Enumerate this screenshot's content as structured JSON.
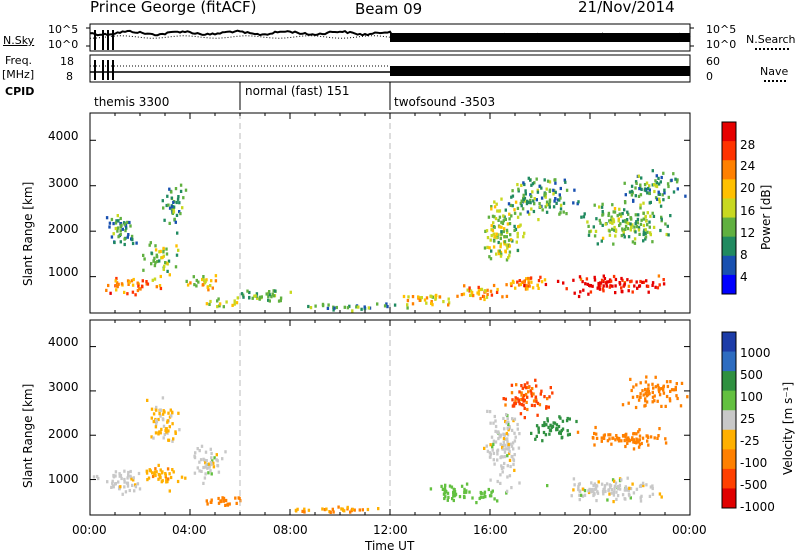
{
  "header": {
    "station": "Prince George (fitACF)",
    "beam": "Beam 09",
    "date": "21/Nov/2014"
  },
  "top_panel": {
    "nsky_label": "N.Sky",
    "nsearch_label": "N.Search",
    "left_ticks": [
      "10^5",
      "10^0"
    ],
    "right_ticks": [
      "10^5",
      "10^0"
    ]
  },
  "freq_panel": {
    "label_line1": "Freq.",
    "label_line2": "[MHz]",
    "left_ticks": [
      "18",
      "8"
    ],
    "right_ticks": [
      "60",
      "0"
    ],
    "nave_label": "Nave",
    "cpid_label": "CPID"
  },
  "cpid_segments": [
    {
      "label": "themis 3300",
      "start_hour": 0,
      "end_hour": 6
    },
    {
      "label": "normal (fast) 151",
      "start_hour": 6,
      "end_hour": 12
    },
    {
      "label": "twofsound -3503",
      "start_hour": 12,
      "end_hour": 24
    }
  ],
  "power_panel": {
    "ylabel": "Slant Range [km]",
    "cbar_label": "Power [dB]",
    "cbar_ticks": [
      "28",
      "24",
      "20",
      "16",
      "12",
      "8",
      "4"
    ],
    "cbar_colors": [
      "#e60000",
      "#ff3300",
      "#ff8000",
      "#ffc000",
      "#c8d820",
      "#60b040",
      "#208a60",
      "#1850b0",
      "#0000ff"
    ]
  },
  "velocity_panel": {
    "ylabel": "Slant Range [km]",
    "cbar_label": "Velocity [m s⁻¹]",
    "cbar_ticks": [
      "1000",
      "500",
      "100",
      "25",
      "-25",
      "-100",
      "-500",
      "-1000"
    ],
    "cbar_colors": [
      "#1c3ca8",
      "#2d6cc0",
      "#2f9040",
      "#63c040",
      "#c8c8c8",
      "#ffb000",
      "#ff8000",
      "#ff4000",
      "#e00000"
    ]
  },
  "y_ticks": [
    "4000",
    "3000",
    "2000",
    "1000"
  ],
  "x_ticks": [
    "00:00",
    "04:00",
    "08:00",
    "12:00",
    "16:00",
    "20:00",
    "00:00"
  ],
  "xlabel": "Time UT",
  "chart_data": [
    {
      "type": "heatmap",
      "title": "Power [dB]",
      "xlabel": "Time UT",
      "ylabel": "Slant Range [km]",
      "xlim": [
        0,
        24
      ],
      "ylim": [
        200,
        4600
      ],
      "clim": [
        0,
        30
      ],
      "blobs": [
        {
          "t": 1.5,
          "r": 850,
          "dt": 1.4,
          "dr": 280,
          "v": 22
        },
        {
          "t": 2.8,
          "r": 1400,
          "dt": 0.9,
          "dr": 500,
          "v": 14
        },
        {
          "t": 1.2,
          "r": 2100,
          "dt": 0.8,
          "dr": 600,
          "v": 9
        },
        {
          "t": 3.3,
          "r": 2600,
          "dt": 0.6,
          "dr": 700,
          "v": 10
        },
        {
          "t": 4.5,
          "r": 900,
          "dt": 1.0,
          "dr": 250,
          "v": 16
        },
        {
          "t": 5.2,
          "r": 450,
          "dt": 1.2,
          "dr": 120,
          "v": 14
        },
        {
          "t": 7.0,
          "r": 600,
          "dt": 1.8,
          "dr": 200,
          "v": 12
        },
        {
          "t": 10.5,
          "r": 350,
          "dt": 2.5,
          "dr": 120,
          "v": 10
        },
        {
          "t": 13.5,
          "r": 500,
          "dt": 1.6,
          "dr": 200,
          "v": 18
        },
        {
          "t": 15.5,
          "r": 650,
          "dt": 1.4,
          "dr": 250,
          "v": 20
        },
        {
          "t": 16.5,
          "r": 2000,
          "dt": 1.2,
          "dr": 1000,
          "v": 14
        },
        {
          "t": 17.5,
          "r": 900,
          "dt": 1.5,
          "dr": 250,
          "v": 22
        },
        {
          "t": 18.0,
          "r": 2800,
          "dt": 1.8,
          "dr": 600,
          "v": 10
        },
        {
          "t": 21.0,
          "r": 850,
          "dt": 3.0,
          "dr": 300,
          "v": 28
        },
        {
          "t": 21.5,
          "r": 2200,
          "dt": 2.5,
          "dr": 600,
          "v": 12
        },
        {
          "t": 22.5,
          "r": 3000,
          "dt": 1.5,
          "dr": 500,
          "v": 10
        }
      ]
    },
    {
      "type": "heatmap",
      "title": "Velocity [m s⁻¹]",
      "xlabel": "Time UT",
      "ylabel": "Slant Range [km]",
      "xlim": [
        0,
        24
      ],
      "ylim": [
        200,
        4600
      ],
      "clim": [
        -1000,
        1000
      ],
      "blobs": [
        {
          "t": 1.3,
          "r": 1000,
          "dt": 1.3,
          "dr": 400,
          "v": 0
        },
        {
          "t": 2.8,
          "r": 1100,
          "dt": 1.2,
          "dr": 350,
          "v": -80
        },
        {
          "t": 2.9,
          "r": 2300,
          "dt": 0.9,
          "dr": 700,
          "v": -40
        },
        {
          "t": 4.6,
          "r": 1400,
          "dt": 1.0,
          "dr": 500,
          "v": 0
        },
        {
          "t": 5.5,
          "r": 550,
          "dt": 1.5,
          "dr": 150,
          "v": -150
        },
        {
          "t": 10.0,
          "r": 350,
          "dt": 3.0,
          "dr": 100,
          "v": -100
        },
        {
          "t": 15.0,
          "r": 700,
          "dt": 2.0,
          "dr": 300,
          "v": 60
        },
        {
          "t": 16.5,
          "r": 1800,
          "dt": 1.0,
          "dr": 1200,
          "v": 0
        },
        {
          "t": 17.5,
          "r": 2900,
          "dt": 1.5,
          "dr": 500,
          "v": -600
        },
        {
          "t": 18.5,
          "r": 2200,
          "dt": 1.2,
          "dr": 400,
          "v": 150
        },
        {
          "t": 21.0,
          "r": 800,
          "dt": 3.2,
          "dr": 350,
          "v": 0
        },
        {
          "t": 21.5,
          "r": 1950,
          "dt": 2.5,
          "dr": 300,
          "v": -300
        },
        {
          "t": 22.5,
          "r": 3000,
          "dt": 1.5,
          "dr": 500,
          "v": -200
        }
      ]
    }
  ]
}
